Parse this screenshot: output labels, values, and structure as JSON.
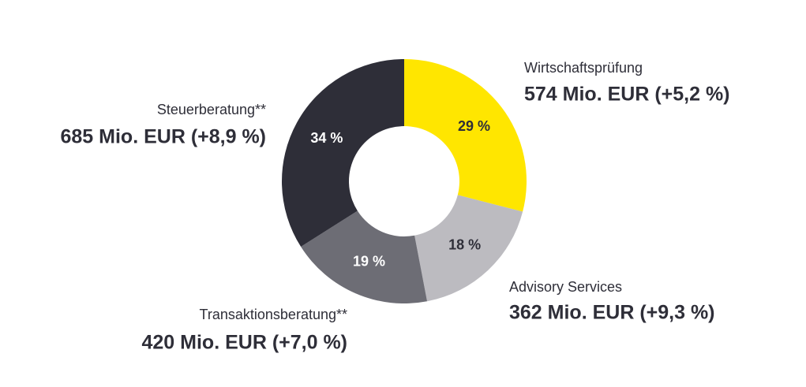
{
  "chart_data": {
    "type": "pie",
    "categories": [
      "Wirtschaftsprüfung",
      "Advisory Services",
      "Transaktionsberatung**",
      "Steuerberatung**"
    ],
    "values": [
      29,
      18,
      19,
      34
    ],
    "value_labels": [
      "29 %",
      "18 %",
      "19 %",
      "34 %"
    ],
    "details": [
      "574 Mio. EUR (+5,2 %)",
      "362 Mio. EUR (+9,3 %)",
      "420 Mio. EUR (+7,0 %)",
      "685 Mio. EUR (+8,9 %)"
    ],
    "colors": [
      "#ffe600",
      "#bcbbc0",
      "#6d6d75",
      "#2e2e38"
    ],
    "donut": true
  }
}
